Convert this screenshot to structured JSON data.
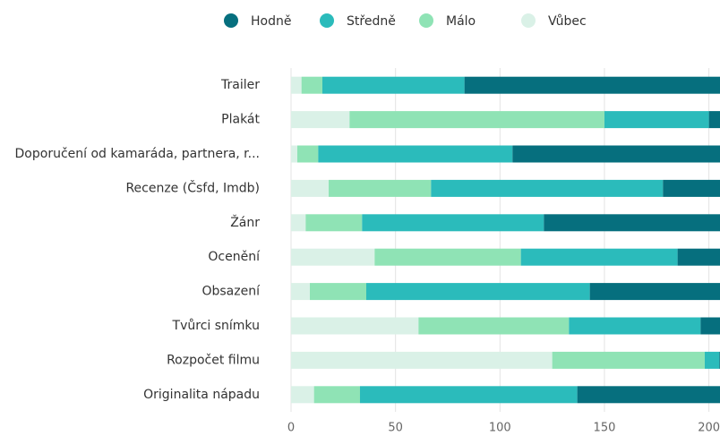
{
  "chart_data": {
    "type": "bar",
    "orientation": "horizontal",
    "stacked": true,
    "categories": [
      "Trailer",
      "Plakát",
      "Doporučení od kamaráda, partnera, r...",
      "Recenze (Čsfd, Imdb)",
      "Žánr",
      "Ocenění",
      "Obsazení",
      "Tvůrci snímku",
      "Rozpočet filmu",
      "Originalita nápadu"
    ],
    "series": [
      {
        "name": "Vůbec",
        "color": "#daf1e7",
        "values": [
          5,
          28,
          3,
          18,
          7,
          40,
          9,
          61,
          125,
          11
        ]
      },
      {
        "name": "Málo",
        "color": "#8fe3b5",
        "values": [
          10,
          122,
          10,
          49,
          27,
          70,
          27,
          72,
          73,
          22
        ]
      },
      {
        "name": "Středně",
        "color": "#2bbbbb",
        "values": [
          68,
          50,
          93,
          111,
          87,
          75,
          107,
          63,
          7,
          104
        ]
      },
      {
        "name": "Hodně",
        "color": "#066f7e",
        "values": [
          127,
          10,
          104,
          32,
          89,
          25,
          67,
          14,
          5,
          73
        ]
      }
    ],
    "legend_order": [
      3,
      2,
      1,
      0
    ],
    "xlim": [
      0,
      205
    ],
    "xticks": [
      0,
      50,
      100,
      150,
      200
    ],
    "grid": true,
    "legend": "top"
  }
}
